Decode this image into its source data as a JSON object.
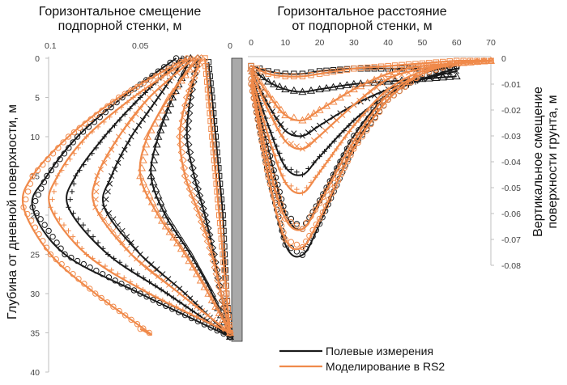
{
  "chart_data": [
    {
      "type": "line",
      "title_lines": [
        "Горизонтальное смещение",
        "подпорной стенки, м"
      ],
      "xlabel": "",
      "ylabel": "Глубина от дневной поверхности, м",
      "xlim": [
        0,
        0.12
      ],
      "x_reversed": true,
      "x_ticks": [
        "0.1",
        "0.05",
        "0"
      ],
      "x_tick_values": [
        0.1,
        0.05,
        0
      ],
      "ylim": [
        0,
        40
      ],
      "y_reversed": true,
      "y_ticks": [
        "0",
        "5",
        "10",
        "15",
        "20",
        "25",
        "30",
        "35",
        "40"
      ],
      "y_tick_values": [
        0,
        5,
        10,
        15,
        20,
        25,
        30,
        35,
        40
      ],
      "series": [
        {
          "group": "field",
          "color": "#1a1a1a",
          "marker": "square",
          "depth": [
            0.5,
            5,
            10,
            15,
            20,
            25,
            30,
            35.5
          ],
          "disp": [
            0.012,
            0.01,
            0.008,
            0.006,
            0.004,
            0.003,
            0.002,
            0.0
          ]
        },
        {
          "group": "field",
          "color": "#1a1a1a",
          "marker": "diamond",
          "depth": [
            0,
            5,
            10,
            15,
            20,
            25,
            30,
            35.5
          ],
          "disp": [
            0.018,
            0.022,
            0.024,
            0.02,
            0.014,
            0.009,
            0.005,
            0.0
          ]
        },
        {
          "group": "field",
          "color": "#1a1a1a",
          "marker": "triangle",
          "depth": [
            0,
            5,
            10,
            15,
            20,
            25,
            30,
            35.5
          ],
          "disp": [
            0.022,
            0.032,
            0.04,
            0.044,
            0.036,
            0.022,
            0.01,
            0.0
          ]
        },
        {
          "group": "field",
          "color": "#1a1a1a",
          "marker": "x",
          "depth": [
            0,
            5,
            10,
            15,
            19,
            25,
            30,
            35.5
          ],
          "disp": [
            0.025,
            0.04,
            0.055,
            0.066,
            0.07,
            0.05,
            0.025,
            0.0
          ]
        },
        {
          "group": "field",
          "color": "#1a1a1a",
          "marker": "plus",
          "depth": [
            0,
            5,
            10,
            15,
            19,
            25,
            30,
            35.5
          ],
          "disp": [
            0.027,
            0.05,
            0.07,
            0.086,
            0.09,
            0.068,
            0.035,
            0.0
          ]
        },
        {
          "group": "field",
          "color": "#1a1a1a",
          "marker": "circle",
          "depth": [
            0,
            5,
            10,
            15,
            19,
            25,
            30,
            35.5
          ],
          "disp": [
            0.03,
            0.06,
            0.085,
            0.102,
            0.11,
            0.092,
            0.05,
            0.0
          ]
        },
        {
          "group": "model",
          "color": "#f08a4b",
          "marker": "square",
          "depth": [
            0,
            5,
            10,
            15,
            20,
            25,
            30,
            35
          ],
          "disp": [
            0.014,
            0.012,
            0.01,
            0.008,
            0.006,
            0.004,
            0.002,
            0.0
          ]
        },
        {
          "group": "model",
          "color": "#f08a4b",
          "marker": "diamond",
          "depth": [
            0,
            5,
            10,
            15,
            20,
            25,
            30,
            35
          ],
          "disp": [
            0.016,
            0.024,
            0.028,
            0.025,
            0.017,
            0.01,
            0.005,
            0.0
          ]
        },
        {
          "group": "model",
          "color": "#f08a4b",
          "marker": "triangle",
          "depth": [
            0,
            5,
            10,
            15,
            20,
            25,
            30,
            35
          ],
          "disp": [
            0.018,
            0.034,
            0.046,
            0.05,
            0.04,
            0.025,
            0.012,
            0.0
          ]
        },
        {
          "group": "model",
          "color": "#f08a4b",
          "marker": "x",
          "depth": [
            0,
            5,
            10,
            15,
            19,
            25,
            30,
            35
          ],
          "disp": [
            0.02,
            0.045,
            0.062,
            0.074,
            0.075,
            0.055,
            0.028,
            0.0
          ]
        },
        {
          "group": "model",
          "color": "#f08a4b",
          "marker": "plus",
          "depth": [
            0,
            5,
            10,
            15,
            19,
            25,
            30,
            35
          ],
          "disp": [
            0.022,
            0.054,
            0.08,
            0.096,
            0.1,
            0.08,
            0.045,
            0.0
          ]
        },
        {
          "group": "model",
          "color": "#f08a4b",
          "marker": "circle",
          "depth": [
            0,
            5,
            10,
            15,
            19,
            25,
            30,
            35,
            34.5
          ],
          "disp": [
            0.024,
            0.062,
            0.09,
            0.11,
            0.115,
            0.1,
            0.075,
            0.045,
            0.05
          ]
        }
      ]
    },
    {
      "type": "line",
      "title_lines": [
        "Горизонтальное расстояние",
        "от подпорной стенки, м"
      ],
      "xlabel": "",
      "ylabel_lines": [
        "Вертикальное смещение",
        "поверхности грунта, м"
      ],
      "xlim": [
        0,
        70
      ],
      "x_ticks": [
        "0",
        "10",
        "20",
        "30",
        "40",
        "50",
        "60",
        "70"
      ],
      "x_tick_values": [
        0,
        10,
        20,
        30,
        40,
        50,
        60,
        70
      ],
      "ylim": [
        -0.08,
        0
      ],
      "y_ticks": [
        "0",
        "-0.01",
        "-0.02",
        "-0.03",
        "-0.04",
        "-0.05",
        "-0.06",
        "-0.07",
        "-0.08"
      ],
      "y_tick_values": [
        0,
        -0.01,
        -0.02,
        -0.03,
        -0.04,
        -0.05,
        -0.06,
        -0.07,
        -0.08
      ],
      "series": [
        {
          "group": "field",
          "color": "#1a1a1a",
          "marker": "square",
          "x": [
            0,
            5,
            10,
            15,
            20,
            30,
            40,
            50,
            60
          ],
          "y": [
            -0.003,
            -0.005,
            -0.006,
            -0.006,
            -0.005,
            -0.004,
            -0.004,
            -0.004,
            -0.003
          ]
        },
        {
          "group": "field",
          "color": "#1a1a1a",
          "marker": "triangle",
          "x": [
            0,
            5,
            10,
            15,
            20,
            30,
            40,
            50,
            60
          ],
          "y": [
            -0.004,
            -0.009,
            -0.012,
            -0.013,
            -0.012,
            -0.01,
            -0.009,
            -0.008,
            -0.007
          ]
        },
        {
          "group": "field",
          "color": "#1a1a1a",
          "marker": "x",
          "x": [
            0,
            5,
            10,
            15,
            20,
            30,
            40,
            50,
            60
          ],
          "y": [
            -0.005,
            -0.018,
            -0.028,
            -0.03,
            -0.026,
            -0.018,
            -0.012,
            -0.008,
            -0.005
          ]
        },
        {
          "group": "field",
          "color": "#1a1a1a",
          "marker": "plus",
          "x": [
            0,
            5,
            10,
            15,
            20,
            30,
            40,
            50,
            60
          ],
          "y": [
            -0.006,
            -0.026,
            -0.042,
            -0.045,
            -0.038,
            -0.024,
            -0.014,
            -0.008,
            -0.004
          ]
        },
        {
          "group": "field",
          "color": "#1a1a1a",
          "marker": "circle",
          "x": [
            0,
            5,
            10,
            15,
            20,
            30,
            40,
            50,
            60
          ],
          "y": [
            -0.008,
            -0.035,
            -0.06,
            -0.066,
            -0.055,
            -0.03,
            -0.014,
            -0.006,
            -0.003
          ]
        },
        {
          "group": "field",
          "color": "#1a1a1a",
          "marker": "circle",
          "x": [
            0,
            5,
            10,
            15,
            20,
            30,
            40,
            50,
            60
          ],
          "y": [
            -0.01,
            -0.045,
            -0.072,
            -0.076,
            -0.064,
            -0.034,
            -0.016,
            -0.006,
            -0.002
          ]
        },
        {
          "group": "model",
          "color": "#f08a4b",
          "marker": "square",
          "x": [
            0,
            5,
            10,
            15,
            20,
            30,
            40,
            50,
            60,
            70
          ],
          "y": [
            -0.003,
            -0.006,
            -0.007,
            -0.007,
            -0.006,
            -0.004,
            -0.003,
            -0.002,
            -0.001,
            -0.001
          ]
        },
        {
          "group": "model",
          "color": "#f08a4b",
          "marker": "triangle",
          "x": [
            0,
            5,
            10,
            15,
            20,
            30,
            40,
            50,
            60,
            70
          ],
          "y": [
            -0.004,
            -0.014,
            -0.022,
            -0.024,
            -0.02,
            -0.012,
            -0.006,
            -0.003,
            -0.002,
            -0.001
          ]
        },
        {
          "group": "model",
          "color": "#f08a4b",
          "marker": "x",
          "x": [
            0,
            5,
            10,
            15,
            20,
            30,
            40,
            50,
            60,
            70
          ],
          "y": [
            -0.005,
            -0.02,
            -0.032,
            -0.035,
            -0.03,
            -0.018,
            -0.008,
            -0.004,
            -0.002,
            -0.001
          ]
        },
        {
          "group": "model",
          "color": "#f08a4b",
          "marker": "plus",
          "x": [
            0,
            5,
            10,
            15,
            20,
            30,
            40,
            50,
            60,
            70
          ],
          "y": [
            -0.006,
            -0.03,
            -0.048,
            -0.052,
            -0.044,
            -0.026,
            -0.012,
            -0.005,
            -0.002,
            -0.001
          ]
        },
        {
          "group": "model",
          "color": "#f08a4b",
          "marker": "circle",
          "x": [
            0,
            5,
            10,
            15,
            20,
            30,
            40,
            50,
            60,
            70
          ],
          "y": [
            -0.008,
            -0.04,
            -0.062,
            -0.066,
            -0.056,
            -0.032,
            -0.014,
            -0.006,
            -0.002,
            -0.001
          ]
        },
        {
          "group": "model",
          "color": "#f08a4b",
          "marker": "circle",
          "x": [
            0,
            5,
            10,
            15,
            20,
            30,
            40,
            50,
            60,
            70
          ],
          "y": [
            -0.01,
            -0.046,
            -0.07,
            -0.073,
            -0.062,
            -0.035,
            -0.016,
            -0.006,
            -0.002,
            -0.001
          ]
        }
      ]
    }
  ],
  "legend": {
    "items": [
      {
        "label": "Полевые измерения",
        "color": "#1a1a1a"
      },
      {
        "label": "Моделирование в RS2",
        "color": "#f08a4b"
      }
    ]
  },
  "wall": {
    "color": "#a9a9a9"
  }
}
